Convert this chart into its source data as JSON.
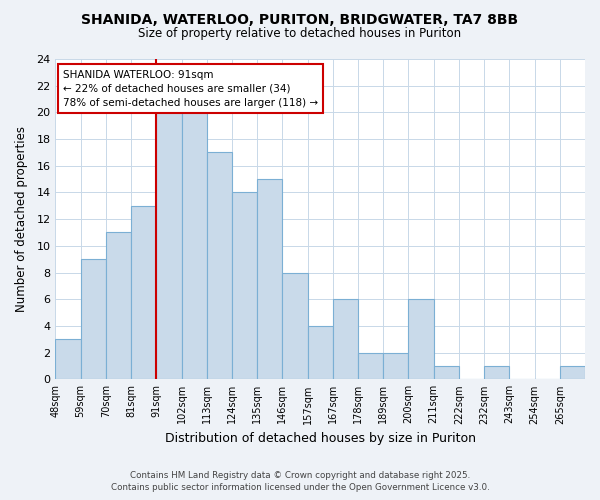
{
  "title": "SHANIDA, WATERLOO, PURITON, BRIDGWATER, TA7 8BB",
  "subtitle": "Size of property relative to detached houses in Puriton",
  "xlabel": "Distribution of detached houses by size in Puriton",
  "ylabel": "Number of detached properties",
  "bin_labels": [
    "48sqm",
    "59sqm",
    "70sqm",
    "81sqm",
    "91sqm",
    "102sqm",
    "113sqm",
    "124sqm",
    "135sqm",
    "146sqm",
    "157sqm",
    "167sqm",
    "178sqm",
    "189sqm",
    "200sqm",
    "211sqm",
    "222sqm",
    "232sqm",
    "243sqm",
    "254sqm",
    "265sqm"
  ],
  "bar_values": [
    3,
    9,
    11,
    13,
    20,
    20,
    17,
    14,
    15,
    8,
    4,
    6,
    2,
    2,
    6,
    1,
    0,
    1,
    0,
    0,
    1
  ],
  "bar_color": "#c9daea",
  "bar_edge_color": "#7bafd4",
  "highlight_label": "SHANIDA WATERLOO: 91sqm",
  "annotation_line1": "← 22% of detached houses are smaller (34)",
  "annotation_line2": "78% of semi-detached houses are larger (118) →",
  "annotation_box_color": "#ffffff",
  "annotation_box_edge": "#cc0000",
  "vline_color": "#cc0000",
  "vline_index": 4,
  "ylim": [
    0,
    24
  ],
  "yticks": [
    0,
    2,
    4,
    6,
    8,
    10,
    12,
    14,
    16,
    18,
    20,
    22,
    24
  ],
  "footer1": "Contains HM Land Registry data © Crown copyright and database right 2025.",
  "footer2": "Contains public sector information licensed under the Open Government Licence v3.0.",
  "bg_color": "#eef2f7",
  "plot_bg_color": "#ffffff"
}
